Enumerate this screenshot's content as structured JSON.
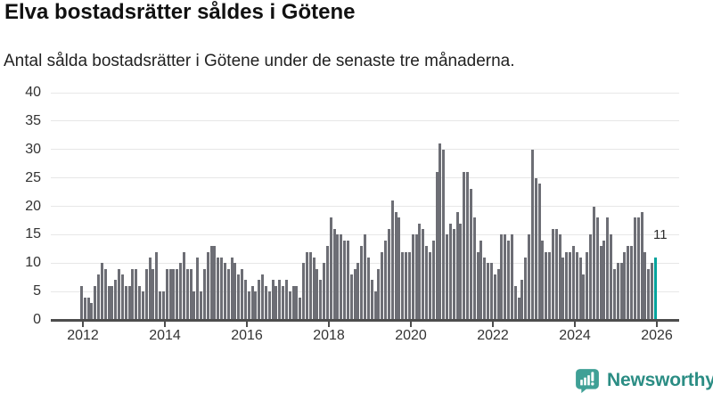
{
  "header": {
    "title": "Elva bostadsrätter såldes i Götene",
    "subtitle": "Antal sålda bostadsrätter i Götene under de senaste tre månaderna."
  },
  "chart_data": {
    "type": "bar",
    "title": "Elva bostadsrätter såldes i Götene",
    "xlabel": "",
    "ylabel": "",
    "ylim": [
      0,
      40
    ],
    "y_ticks": [
      0,
      5,
      10,
      15,
      20,
      25,
      30,
      35,
      40
    ],
    "x_ticks": [
      "2012",
      "2014",
      "2016",
      "2018",
      "2020",
      "2022",
      "2024",
      "2026"
    ],
    "grid": true,
    "legend": false,
    "frequency": "monthly",
    "x_start": "2012-01",
    "values": [
      6,
      4,
      4,
      3,
      6,
      8,
      10,
      9,
      6,
      6,
      7,
      9,
      8,
      6,
      6,
      9,
      9,
      6,
      5,
      9,
      11,
      9,
      12,
      5,
      5,
      9,
      9,
      9,
      9,
      10,
      12,
      9,
      9,
      5,
      11,
      5,
      9,
      12,
      13,
      13,
      11,
      11,
      10,
      9,
      11,
      10,
      8,
      9,
      7,
      5,
      6,
      5,
      7,
      8,
      6,
      5,
      7,
      6,
      7,
      6,
      7,
      5,
      6,
      6,
      4,
      10,
      12,
      12,
      11,
      9,
      7,
      10,
      13,
      18,
      16,
      15,
      15,
      14,
      14,
      8,
      9,
      10,
      13,
      15,
      11,
      7,
      5,
      9,
      12,
      14,
      16,
      21,
      19,
      18,
      12,
      12,
      12,
      15,
      15,
      17,
      16,
      13,
      12,
      14,
      26,
      31,
      30,
      15,
      17,
      16,
      19,
      17,
      26,
      26,
      23,
      18,
      12,
      14,
      11,
      10,
      10,
      8,
      9,
      15,
      15,
      14,
      15,
      6,
      4,
      7,
      11,
      15,
      30,
      25,
      24,
      14,
      12,
      12,
      16,
      16,
      15,
      11,
      12,
      12,
      13,
      12,
      11,
      8,
      12,
      15,
      20,
      18,
      13,
      14,
      18,
      15,
      9,
      10,
      10,
      12,
      13,
      13,
      18,
      18,
      19,
      12,
      9,
      10,
      11
    ],
    "highlight_last_value": 11,
    "annotation_label": "11"
  },
  "colors": {
    "bar": "#6d6e75",
    "highlight": "#00a39c",
    "grid": "#e7e7e7",
    "axis": "#4d4d4d",
    "tick_text": "#333333",
    "logo_icon": "#3fa096",
    "logo_text": "#2b8d84"
  },
  "footer": {
    "brand": "Newsworthy"
  },
  "icons": {
    "logo": "bar-chart-speech-bubble-icon"
  }
}
